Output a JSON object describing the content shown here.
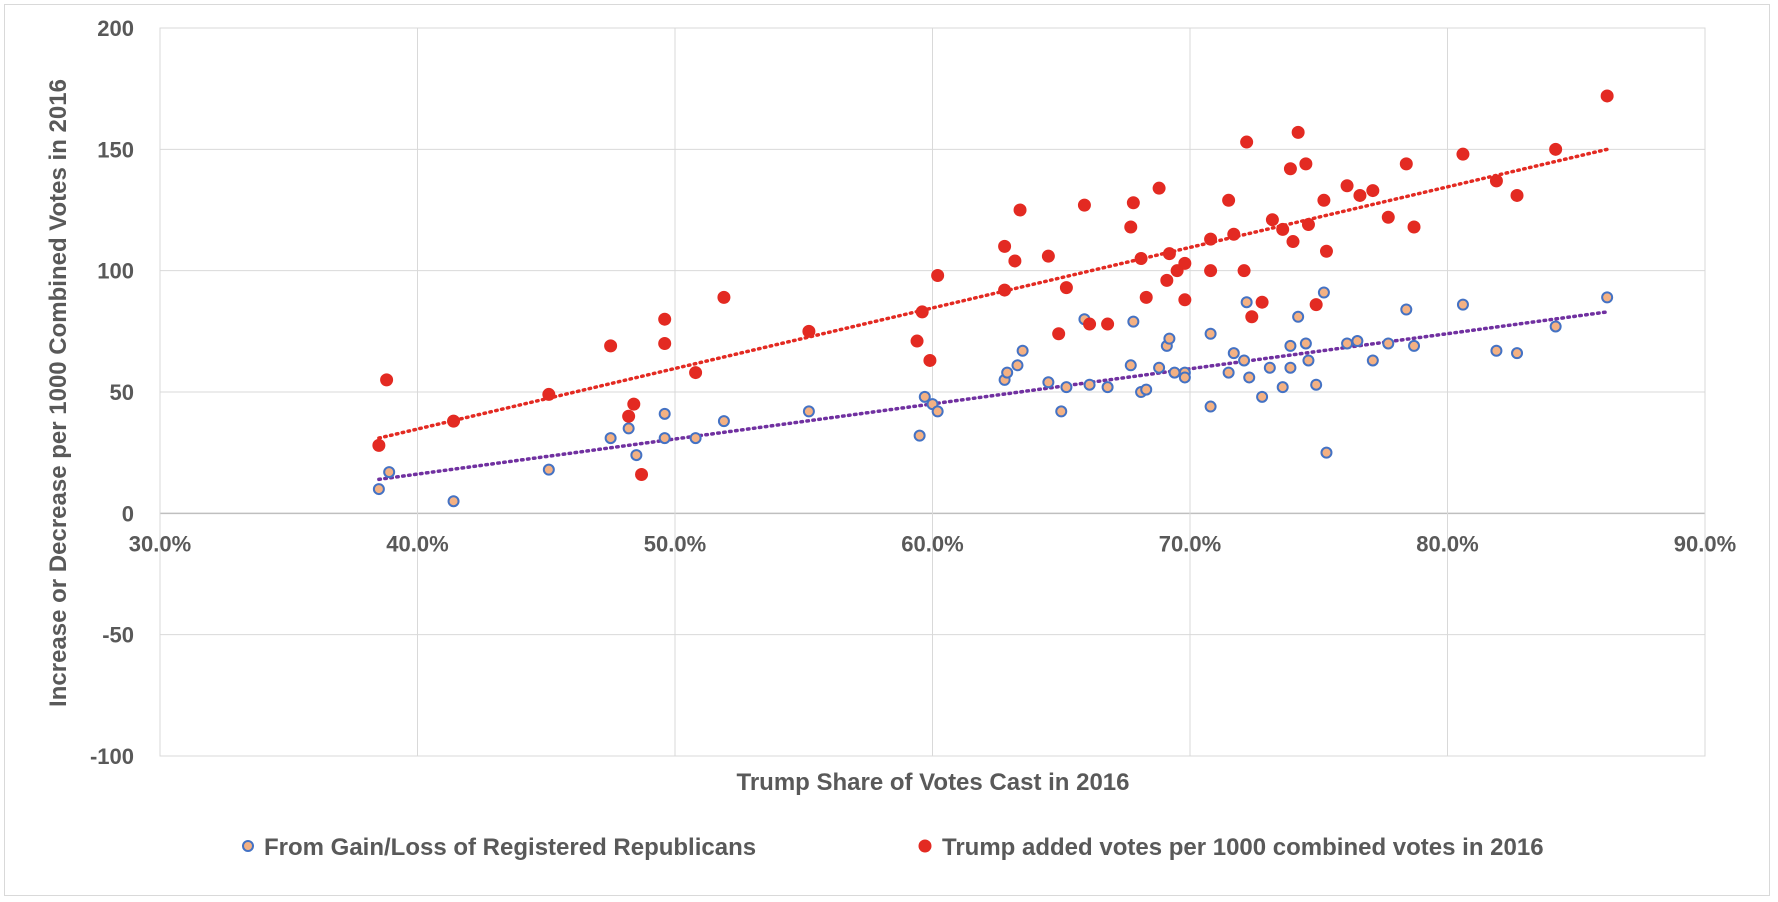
{
  "chart_data": {
    "type": "scatter",
    "title": "",
    "xlabel": "Trump Share of  Votes Cast in 2016",
    "ylabel": "Increase or Decrease per 1000 Combined Votes in 2016",
    "xlim": [
      0.3,
      0.9
    ],
    "ylim": [
      -100,
      200
    ],
    "x_ticks": [
      0.3,
      0.4,
      0.5,
      0.6,
      0.7,
      0.8,
      0.9
    ],
    "x_tick_labels": [
      "30.0%",
      "40.0%",
      "50.0%",
      "60.0%",
      "70.0%",
      "80.0%",
      "90.0%"
    ],
    "y_ticks": [
      -100,
      -50,
      0,
      50,
      100,
      150,
      200
    ],
    "y_tick_labels": [
      "-100",
      "-50",
      "0",
      "50",
      "100",
      "150",
      "200"
    ],
    "grid": true,
    "legend_position": "bottom",
    "series": [
      {
        "name": "From Gain/Loss of Registered Republicans",
        "marker_fill": "#f4b183",
        "marker_edge": "#4472c4",
        "trend_color": "#7030a0",
        "trendline": {
          "x": [
            0.385,
            0.862
          ],
          "y": [
            14,
            83
          ]
        },
        "points": [
          [
            0.385,
            10
          ],
          [
            0.389,
            17
          ],
          [
            0.414,
            5
          ],
          [
            0.451,
            18
          ],
          [
            0.475,
            31
          ],
          [
            0.482,
            35
          ],
          [
            0.485,
            24
          ],
          [
            0.496,
            41
          ],
          [
            0.496,
            31
          ],
          [
            0.508,
            31
          ],
          [
            0.519,
            38
          ],
          [
            0.552,
            42
          ],
          [
            0.595,
            32
          ],
          [
            0.597,
            48
          ],
          [
            0.6,
            45
          ],
          [
            0.602,
            42
          ],
          [
            0.628,
            55
          ],
          [
            0.629,
            58
          ],
          [
            0.633,
            61
          ],
          [
            0.635,
            67
          ],
          [
            0.645,
            54
          ],
          [
            0.65,
            42
          ],
          [
            0.652,
            52
          ],
          [
            0.659,
            80
          ],
          [
            0.661,
            53
          ],
          [
            0.668,
            52
          ],
          [
            0.677,
            61
          ],
          [
            0.678,
            79
          ],
          [
            0.681,
            50
          ],
          [
            0.683,
            51
          ],
          [
            0.688,
            60
          ],
          [
            0.691,
            69
          ],
          [
            0.692,
            72
          ],
          [
            0.694,
            58
          ],
          [
            0.698,
            58
          ],
          [
            0.698,
            56
          ],
          [
            0.708,
            74
          ],
          [
            0.708,
            44
          ],
          [
            0.715,
            58
          ],
          [
            0.717,
            66
          ],
          [
            0.721,
            63
          ],
          [
            0.722,
            87
          ],
          [
            0.723,
            56
          ],
          [
            0.728,
            48
          ],
          [
            0.731,
            60
          ],
          [
            0.736,
            52
          ],
          [
            0.739,
            69
          ],
          [
            0.739,
            60
          ],
          [
            0.742,
            81
          ],
          [
            0.745,
            70
          ],
          [
            0.746,
            63
          ],
          [
            0.749,
            53
          ],
          [
            0.752,
            91
          ],
          [
            0.753,
            25
          ],
          [
            0.761,
            70
          ],
          [
            0.765,
            71
          ],
          [
            0.771,
            63
          ],
          [
            0.777,
            70
          ],
          [
            0.784,
            84
          ],
          [
            0.787,
            69
          ],
          [
            0.806,
            86
          ],
          [
            0.819,
            67
          ],
          [
            0.827,
            66
          ],
          [
            0.842,
            77
          ],
          [
            0.862,
            89
          ]
        ]
      },
      {
        "name": "Trump added votes per 1000 combined votes in 2016",
        "marker_fill": "#e32a22",
        "marker_edge": "#e32a22",
        "trend_color": "#e32a22",
        "trendline": {
          "x": [
            0.385,
            0.862
          ],
          "y": [
            31,
            150
          ]
        },
        "points": [
          [
            0.385,
            28
          ],
          [
            0.388,
            55
          ],
          [
            0.414,
            38
          ],
          [
            0.451,
            49
          ],
          [
            0.475,
            69
          ],
          [
            0.482,
            40
          ],
          [
            0.484,
            45
          ],
          [
            0.487,
            16
          ],
          [
            0.496,
            80
          ],
          [
            0.496,
            70
          ],
          [
            0.508,
            58
          ],
          [
            0.519,
            89
          ],
          [
            0.552,
            75
          ],
          [
            0.594,
            71
          ],
          [
            0.596,
            83
          ],
          [
            0.599,
            63
          ],
          [
            0.602,
            98
          ],
          [
            0.628,
            92
          ],
          [
            0.628,
            110
          ],
          [
            0.632,
            104
          ],
          [
            0.634,
            125
          ],
          [
            0.645,
            106
          ],
          [
            0.649,
            74
          ],
          [
            0.652,
            93
          ],
          [
            0.659,
            127
          ],
          [
            0.661,
            78
          ],
          [
            0.668,
            78
          ],
          [
            0.677,
            118
          ],
          [
            0.678,
            128
          ],
          [
            0.681,
            105
          ],
          [
            0.683,
            89
          ],
          [
            0.688,
            134
          ],
          [
            0.691,
            96
          ],
          [
            0.692,
            107
          ],
          [
            0.695,
            100
          ],
          [
            0.698,
            103
          ],
          [
            0.698,
            88
          ],
          [
            0.708,
            113
          ],
          [
            0.708,
            100
          ],
          [
            0.715,
            129
          ],
          [
            0.717,
            115
          ],
          [
            0.721,
            100
          ],
          [
            0.722,
            153
          ],
          [
            0.724,
            81
          ],
          [
            0.728,
            87
          ],
          [
            0.732,
            121
          ],
          [
            0.736,
            117
          ],
          [
            0.739,
            142
          ],
          [
            0.74,
            112
          ],
          [
            0.742,
            157
          ],
          [
            0.745,
            144
          ],
          [
            0.746,
            119
          ],
          [
            0.749,
            86
          ],
          [
            0.752,
            129
          ],
          [
            0.753,
            108
          ],
          [
            0.761,
            135
          ],
          [
            0.766,
            131
          ],
          [
            0.771,
            133
          ],
          [
            0.777,
            122
          ],
          [
            0.784,
            144
          ],
          [
            0.787,
            118
          ],
          [
            0.806,
            148
          ],
          [
            0.819,
            137
          ],
          [
            0.827,
            131
          ],
          [
            0.842,
            150
          ],
          [
            0.862,
            172
          ]
        ]
      }
    ]
  }
}
